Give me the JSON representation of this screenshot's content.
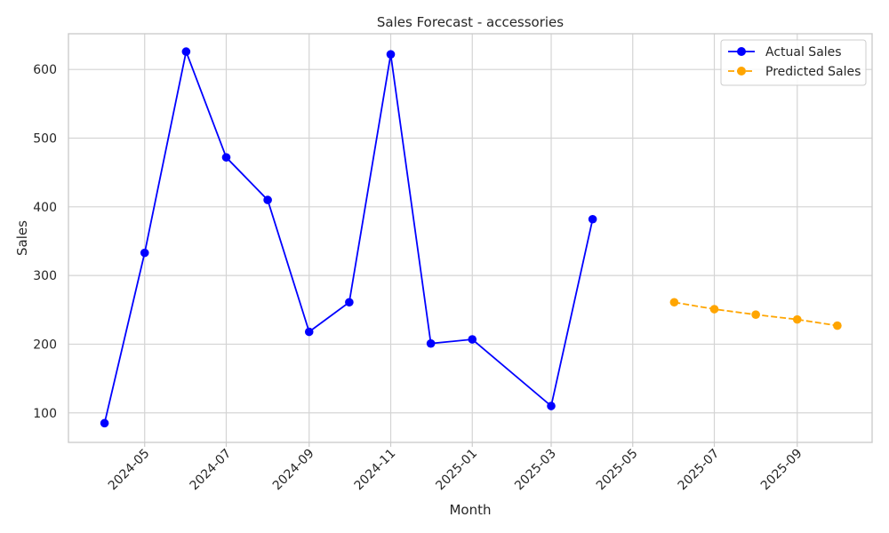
{
  "chart_data": {
    "type": "line",
    "title": "Sales Forecast - accessories",
    "xlabel": "Month",
    "ylabel": "Sales",
    "xlim": [
      "2024-03-05",
      "2025-10-27"
    ],
    "ylim": [
      57,
      652
    ],
    "x_ticks": [
      "2024-05",
      "2024-07",
      "2024-09",
      "2024-11",
      "2025-01",
      "2025-03",
      "2025-05",
      "2025-07",
      "2025-09"
    ],
    "y_ticks": [
      100,
      200,
      300,
      400,
      500,
      600
    ],
    "grid": true,
    "legend_position": "top-right",
    "series": [
      {
        "name": "Actual Sales",
        "color": "#0000ff",
        "line_style": "solid",
        "marker": "circle",
        "x": [
          "2024-04-01",
          "2024-05-01",
          "2024-06-01",
          "2024-07-01",
          "2024-08-01",
          "2024-09-01",
          "2024-10-01",
          "2024-11-01",
          "2024-12-01",
          "2025-01-01",
          "2025-03-01",
          "2025-04-01"
        ],
        "values": [
          85,
          333,
          626,
          472,
          410,
          218,
          261,
          622,
          201,
          207,
          110,
          382
        ]
      },
      {
        "name": "Predicted Sales",
        "color": "#ffa500",
        "line_style": "dashed",
        "marker": "circle",
        "x": [
          "2025-06-01",
          "2025-07-01",
          "2025-08-01",
          "2025-09-01",
          "2025-10-01"
        ],
        "values": [
          261,
          251,
          243,
          236,
          227
        ]
      }
    ]
  }
}
